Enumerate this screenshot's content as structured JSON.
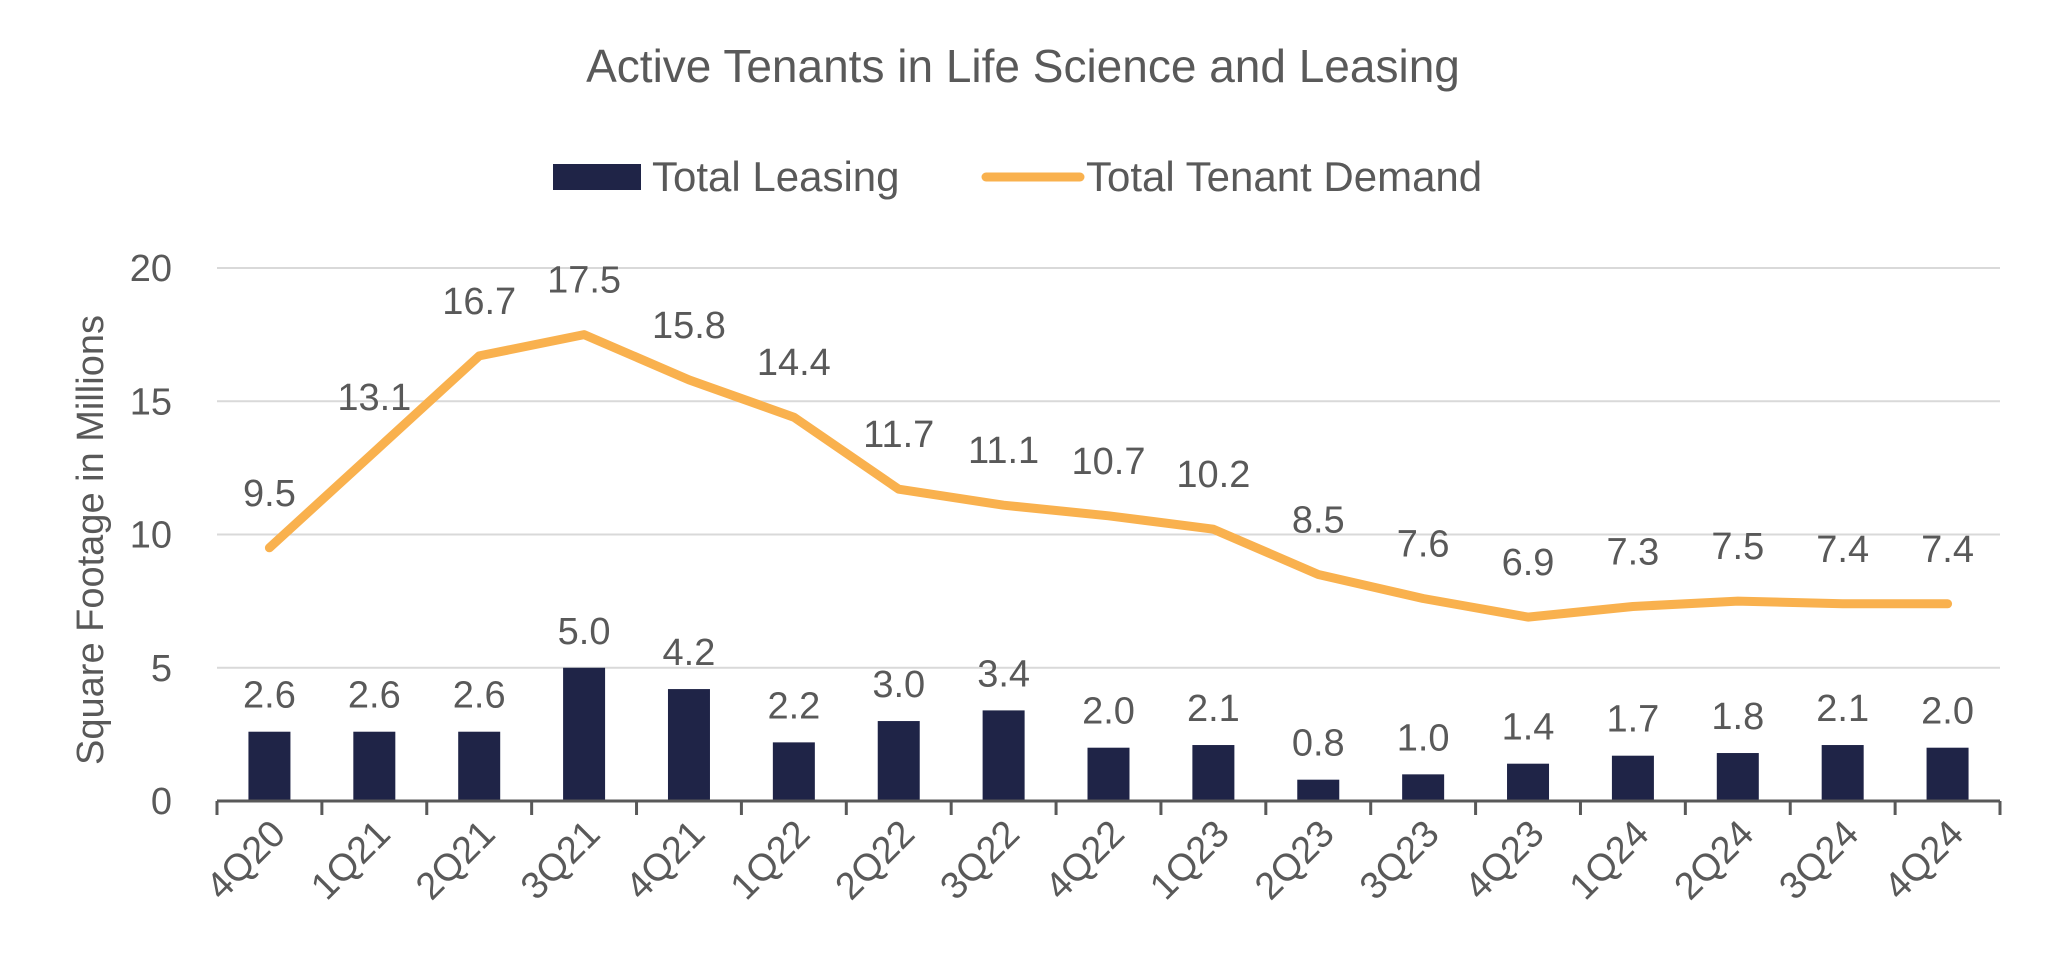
{
  "chart_data": {
    "type": "bar",
    "title": "Active Tenants in Life Science and Leasing",
    "xlabel": "",
    "ylabel": "Square Footage in Millions",
    "ylim": [
      0,
      20
    ],
    "yticks": [
      "0",
      "5",
      "10",
      "15",
      "20"
    ],
    "grid": true,
    "legend_position": "top",
    "categories": [
      "4Q20",
      "1Q21",
      "2Q21",
      "3Q21",
      "4Q21",
      "1Q22",
      "2Q22",
      "3Q22",
      "4Q22",
      "1Q23",
      "2Q23",
      "3Q23",
      "4Q23",
      "1Q24",
      "2Q24",
      "3Q24",
      "4Q24"
    ],
    "series": [
      {
        "name": "Total Leasing",
        "type": "bar",
        "color": "#1f2447",
        "values": [
          2.6,
          2.6,
          2.6,
          5.0,
          4.2,
          2.2,
          3.0,
          3.4,
          2.0,
          2.1,
          0.8,
          1.0,
          1.4,
          1.7,
          1.8,
          2.1,
          2.0
        ],
        "labels": [
          "2.6",
          "2.6",
          "2.6",
          "5.0",
          "4.2",
          "2.2",
          "3.0",
          "3.4",
          "2.0",
          "2.1",
          "0.8",
          "1.0",
          "1.4",
          "1.7",
          "1.8",
          "2.1",
          "2.0"
        ]
      },
      {
        "name": "Total Tenant Demand",
        "type": "line",
        "color": "#f9b14e",
        "values": [
          9.5,
          13.1,
          16.7,
          17.5,
          15.8,
          14.4,
          11.7,
          11.1,
          10.7,
          10.2,
          8.5,
          7.6,
          6.9,
          7.3,
          7.5,
          7.4,
          7.4
        ],
        "labels": [
          "9.5",
          "13.1",
          "16.7",
          "17.5",
          "15.8",
          "14.4",
          "11.7",
          "11.1",
          "10.7",
          "10.2",
          "8.5",
          "7.6",
          "6.9",
          "7.3",
          "7.5",
          "7.4",
          "7.4"
        ]
      }
    ]
  }
}
